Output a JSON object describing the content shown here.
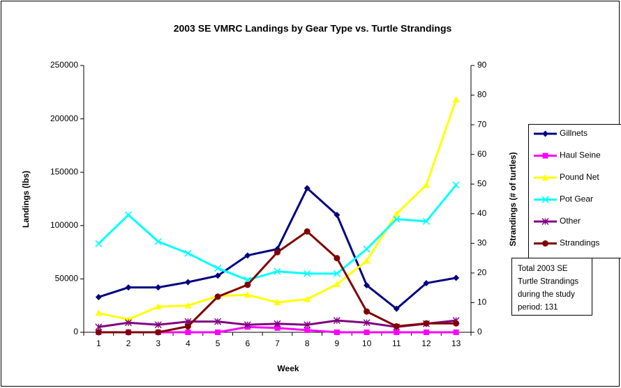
{
  "chart_data": {
    "type": "line",
    "title": "2003 SE VMRC Landings by Gear Type vs. Turtle Strandings",
    "x_label": "Week",
    "y_label": "Landings (lbs)",
    "y2_label": "Strandings (# of turtles)",
    "categories": [
      "1",
      "2",
      "3",
      "4",
      "5",
      "6",
      "7",
      "8",
      "9",
      "10",
      "11",
      "12",
      "13"
    ],
    "ylim": [
      0,
      250000
    ],
    "yticks": [
      0,
      50000,
      100000,
      150000,
      200000,
      250000
    ],
    "y2lim": [
      0,
      90
    ],
    "y2ticks": [
      0,
      10,
      20,
      30,
      40,
      50,
      60,
      70,
      80,
      90
    ],
    "legend": "right",
    "series": [
      {
        "name": "Gillnets",
        "color": "#000080",
        "marker": "diamond",
        "values": [
          33000,
          42000,
          42000,
          47000,
          53000,
          72000,
          78000,
          135000,
          110000,
          44000,
          22000,
          46000,
          51000
        ]
      },
      {
        "name": "Haul Seine",
        "color": "#ff00ff",
        "marker": "square",
        "values": [
          0,
          0,
          0,
          0,
          0,
          5000,
          4000,
          2000,
          0,
          0,
          0,
          0,
          0
        ]
      },
      {
        "name": "Pound Net",
        "color": "#ffff00",
        "marker": "triangle",
        "values": [
          18000,
          12000,
          24000,
          25000,
          34000,
          35000,
          28000,
          31000,
          45000,
          67000,
          111000,
          138000,
          218000
        ]
      },
      {
        "name": "Pot Gear",
        "color": "#00ffff",
        "marker": "x",
        "values": [
          83000,
          110000,
          85000,
          74000,
          60000,
          49000,
          57000,
          55000,
          55000,
          78000,
          106000,
          104000,
          138000
        ]
      },
      {
        "name": "Other",
        "color": "#800080",
        "marker": "star",
        "values": [
          5000,
          9000,
          7000,
          10000,
          10000,
          7000,
          8000,
          7000,
          11000,
          9000,
          5000,
          8000,
          11000
        ]
      },
      {
        "name": "Strandings",
        "color": "#800000",
        "marker": "circle",
        "axis": "y2",
        "values": [
          0,
          0,
          0,
          2,
          12,
          16,
          27,
          34,
          25,
          7,
          2,
          3,
          3
        ]
      }
    ],
    "annotation": [
      "Total 2003 SE",
      "Turtle Strandings",
      "during the study",
      "period: 131"
    ]
  }
}
